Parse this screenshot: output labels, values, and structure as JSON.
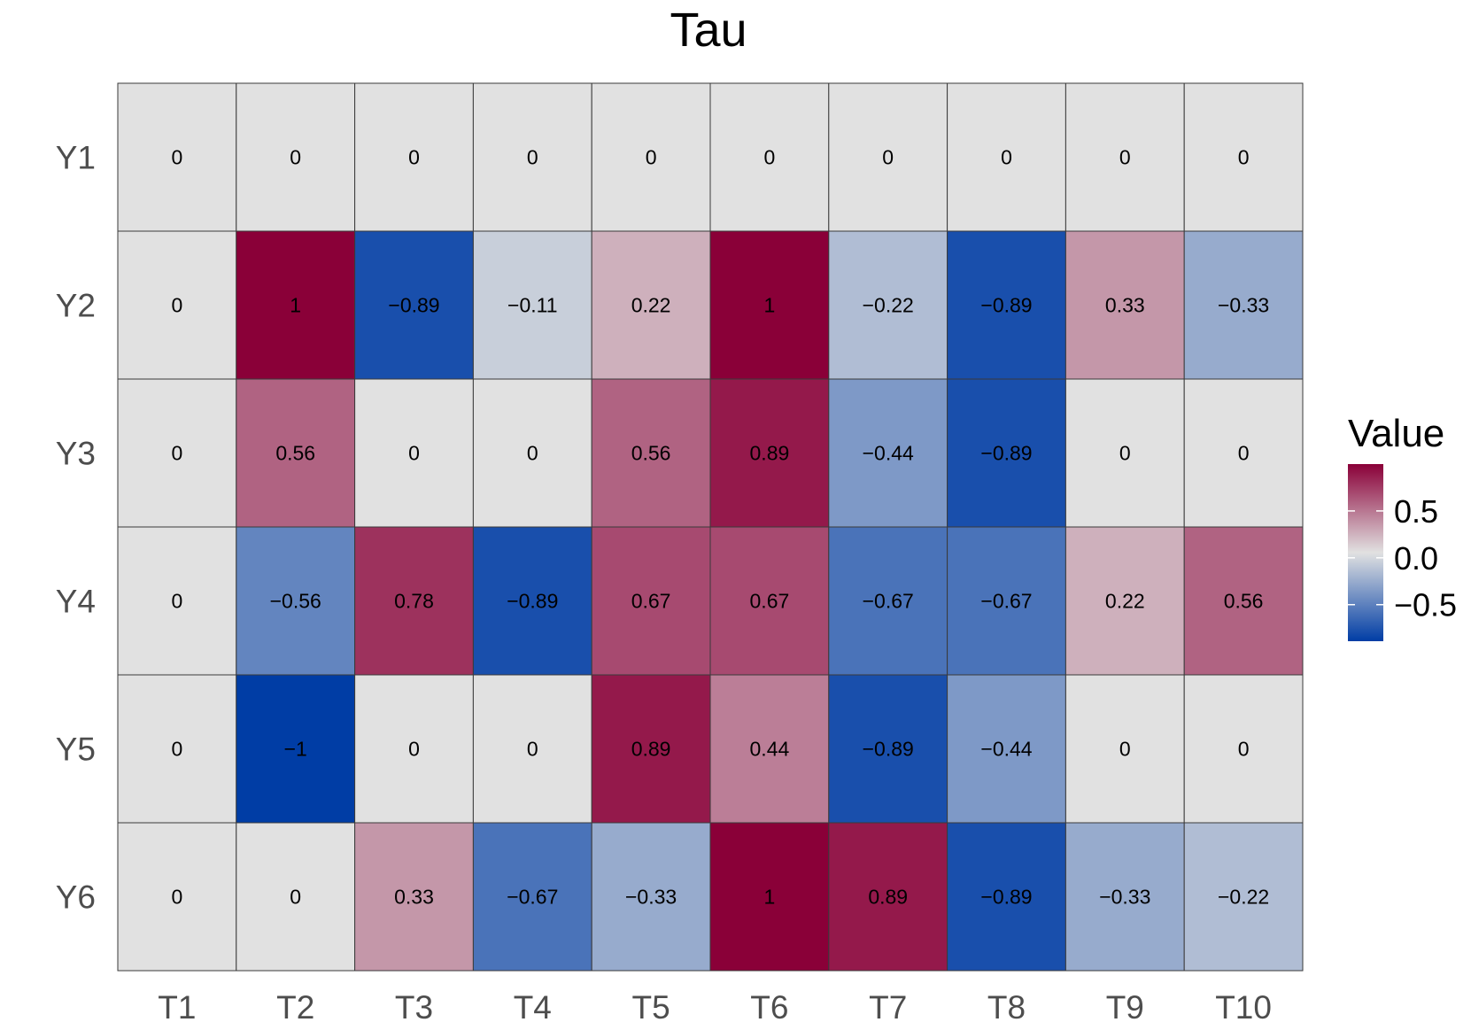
{
  "chart_data": {
    "type": "heatmap",
    "title": "Tau",
    "xlabel": "",
    "ylabel": "",
    "x_categories": [
      "T1",
      "T2",
      "T3",
      "T4",
      "T5",
      "T6",
      "T7",
      "T8",
      "T9",
      "T10"
    ],
    "y_categories": [
      "Y1",
      "Y2",
      "Y3",
      "Y4",
      "Y5",
      "Y6"
    ],
    "values": [
      [
        0,
        0,
        0,
        0,
        0,
        0,
        0,
        0,
        0,
        0
      ],
      [
        0,
        1,
        -0.89,
        -0.11,
        0.22,
        1,
        -0.22,
        -0.89,
        0.33,
        -0.33
      ],
      [
        0,
        0.56,
        0,
        0,
        0.56,
        0.89,
        -0.44,
        -0.89,
        0,
        0
      ],
      [
        0,
        -0.56,
        0.78,
        -0.89,
        0.67,
        0.67,
        -0.67,
        -0.67,
        0.22,
        0.56
      ],
      [
        0,
        -1,
        0,
        0,
        0.89,
        0.44,
        -0.89,
        -0.44,
        0,
        0
      ],
      [
        0,
        0,
        0.33,
        -0.67,
        -0.33,
        1,
        0.89,
        -0.89,
        -0.33,
        -0.22
      ]
    ],
    "cell_labels": [
      [
        "0",
        "0",
        "0",
        "0",
        "0",
        "0",
        "0",
        "0",
        "0",
        "0"
      ],
      [
        "0",
        "1",
        "−0.89",
        "−0.11",
        "0.22",
        "1",
        "−0.22",
        "−0.89",
        "0.33",
        "−0.33"
      ],
      [
        "0",
        "0.56",
        "0",
        "0",
        "0.56",
        "0.89",
        "−0.44",
        "−0.89",
        "0",
        "0"
      ],
      [
        "0",
        "−0.56",
        "0.78",
        "−0.89",
        "0.67",
        "0.67",
        "−0.67",
        "−0.67",
        "0.22",
        "0.56"
      ],
      [
        "0",
        "−1",
        "0",
        "0",
        "0.89",
        "0.44",
        "−0.89",
        "−0.44",
        "0",
        "0"
      ],
      [
        "0",
        "0",
        "0.33",
        "−0.67",
        "−0.33",
        "1",
        "0.89",
        "−0.89",
        "−0.33",
        "−0.22"
      ]
    ],
    "color_scale": {
      "low": "#003DA5",
      "mid": "#E1E1E1",
      "high": "#8A0038",
      "limits": [
        -1,
        1
      ]
    },
    "legend": {
      "title": "Value",
      "placement": "right",
      "ticks": [
        0.5,
        0.0,
        -0.5
      ],
      "tick_labels": [
        "0.5",
        "0.0",
        "−0.5"
      ]
    },
    "grid": false
  }
}
